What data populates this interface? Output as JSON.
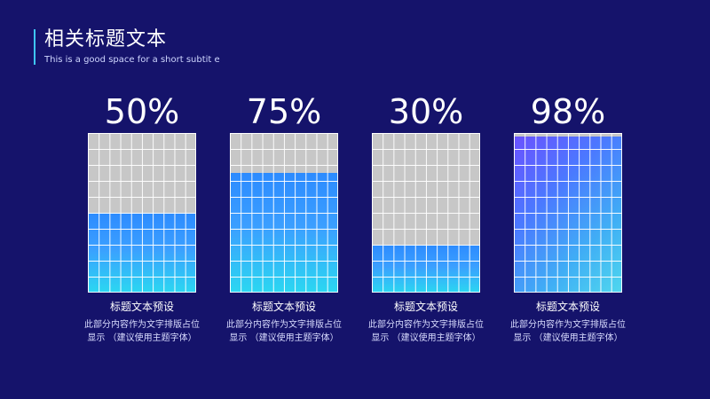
{
  "header": {
    "title": "相关标题文本",
    "subtitle": "This is a good space for a short subtit e"
  },
  "items": [
    {
      "percent_label": "50%",
      "value": 0.5,
      "title": "标题文本预设",
      "desc_line1": "此部分内容作为文字排版占位",
      "desc_line2": "显示 （建议使用主题字体）"
    },
    {
      "percent_label": "75%",
      "value": 0.75,
      "title": "标题文本预设",
      "desc_line1": "此部分内容作为文字排版占位",
      "desc_line2": "显示 （建议使用主题字体）"
    },
    {
      "percent_label": "30%",
      "value": 0.3,
      "title": "标题文本预设",
      "desc_line1": "此部分内容作为文字排版占位",
      "desc_line2": "显示 （建议使用主题字体）"
    },
    {
      "percent_label": "98%",
      "value": 0.98,
      "title": "标题文本预设",
      "desc_line1": "此部分内容作为文字排版占位",
      "desc_line2": "显示 （建议使用主题字体）"
    }
  ],
  "colors": {
    "background": "#15136b",
    "accent": "#3fc6f5",
    "grid_empty": "#c7c7c7",
    "fill_top": "#2c8bff",
    "fill_bottom": "#2bd7f1",
    "fill_high_top": "#6b52ff",
    "fill_high_bottom": "#4fd8ee"
  }
}
